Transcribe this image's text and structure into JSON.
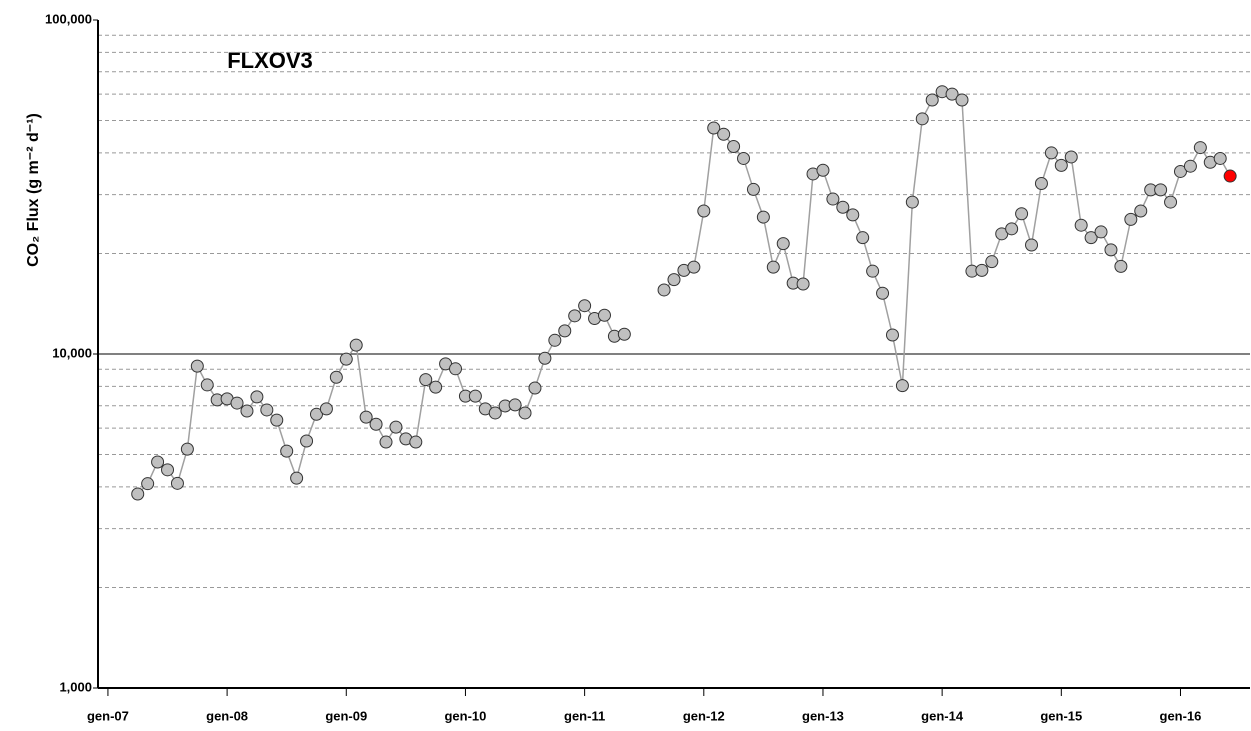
{
  "chart_data": {
    "type": "line-markers",
    "title": "FLXOV3",
    "y_label": "CO₂ Flux (g m⁻² d⁻¹)",
    "log_y": true,
    "grid": true,
    "line_color": "#a0a0a0",
    "marker_color": "#c0c0c0",
    "last_point_color": "#ff0000",
    "ylim": [
      1000,
      100000
    ],
    "yticks": [
      {
        "value": 1000,
        "label": "1,000"
      },
      {
        "value": 10000,
        "label": "10,000"
      },
      {
        "value": 100000,
        "label": "100,000"
      }
    ],
    "minor_yticks": [
      2000,
      3000,
      4000,
      5000,
      6000,
      7000,
      8000,
      9000,
      20000,
      30000,
      40000,
      50000,
      60000,
      70000,
      80000,
      90000
    ],
    "xlim": [
      "2006-12",
      "2016-08"
    ],
    "xticks": [
      {
        "value": "2007-01",
        "label": "gen-07"
      },
      {
        "value": "2008-01",
        "label": "gen-08"
      },
      {
        "value": "2009-01",
        "label": "gen-09"
      },
      {
        "value": "2010-01",
        "label": "gen-10"
      },
      {
        "value": "2011-01",
        "label": "gen-11"
      },
      {
        "value": "2012-01",
        "label": "gen-12"
      },
      {
        "value": "2013-01",
        "label": "gen-13"
      },
      {
        "value": "2014-01",
        "label": "gen-14"
      },
      {
        "value": "2015-01",
        "label": "gen-15"
      },
      {
        "value": "2016-01",
        "label": "gen-16"
      }
    ],
    "x": [
      "2007-04",
      "2007-05",
      "2007-06",
      "2007-07",
      "2007-08",
      "2007-09",
      "2007-10",
      "2007-11",
      "2007-12",
      "2008-01",
      "2008-02",
      "2008-03",
      "2008-04",
      "2008-05",
      "2008-06",
      "2008-07",
      "2008-08",
      "2008-09",
      "2008-10",
      "2008-11",
      "2008-12",
      "2009-01",
      "2009-02",
      "2009-03",
      "2009-04",
      "2009-05",
      "2009-06",
      "2009-07",
      "2009-08",
      "2009-09",
      "2009-10",
      "2009-11",
      "2009-12",
      "2010-01",
      "2010-02",
      "2010-03",
      "2010-04",
      "2010-05",
      "2010-06",
      "2010-07",
      "2010-08",
      "2010-09",
      "2010-10",
      "2010-11",
      "2010-12",
      "2011-01",
      "2011-02",
      "2011-03",
      "2011-04",
      "2011-05",
      "2011-06",
      "2011-09",
      "2011-10",
      "2011-11",
      "2011-12",
      "2012-01",
      "2012-02",
      "2012-03",
      "2012-04",
      "2012-05",
      "2012-06",
      "2012-07",
      "2012-08",
      "2012-09",
      "2012-10",
      "2012-11",
      "2012-12",
      "2013-01",
      "2013-02",
      "2013-03",
      "2013-04",
      "2013-05",
      "2013-06",
      "2013-07",
      "2013-08",
      "2013-09",
      "2013-10",
      "2013-11",
      "2013-12",
      "2014-01",
      "2014-02",
      "2014-03",
      "2014-04",
      "2014-05",
      "2014-06",
      "2014-07",
      "2014-08",
      "2014-09",
      "2014-10",
      "2014-11",
      "2014-12",
      "2015-01",
      "2015-02",
      "2015-03",
      "2015-04",
      "2015-05",
      "2015-06",
      "2015-07",
      "2015-08",
      "2015-09",
      "2015-10",
      "2015-11",
      "2015-12",
      "2016-01",
      "2016-02",
      "2016-03",
      "2016-04",
      "2016-05",
      "2016-06"
    ],
    "values": [
      3810,
      4090,
      4750,
      4500,
      4100,
      5190,
      9200,
      8080,
      7290,
      7340,
      7130,
      6750,
      7440,
      6800,
      6340,
      5120,
      4250,
      5490,
      6600,
      6850,
      8520,
      9650,
      10630,
      6470,
      6160,
      5450,
      6040,
      5570,
      5450,
      8380,
      7960,
      9340,
      9030,
      7480,
      7480,
      6850,
      6660,
      6990,
      7040,
      6660,
      7910,
      9710,
      10990,
      11730,
      13010,
      13950,
      12770,
      13060,
      11300,
      11460,
      null,
      15550,
      16700,
      17800,
      18200,
      26800,
      47500,
      45500,
      41800,
      38500,
      31100,
      25700,
      18200,
      21400,
      16300,
      16200,
      34600,
      35500,
      29100,
      27500,
      26100,
      22300,
      17700,
      15200,
      11400,
      8040,
      28500,
      50600,
      57600,
      61000,
      60000,
      57600,
      17700,
      17800,
      18900,
      22900,
      23700,
      26300,
      21200,
      32400,
      40000,
      36700,
      38900,
      24300,
      22300,
      23200,
      20500,
      18300,
      25300,
      26800,
      31000,
      31000,
      28500,
      35200,
      36500,
      41500,
      37500,
      38500,
      34100
    ]
  }
}
